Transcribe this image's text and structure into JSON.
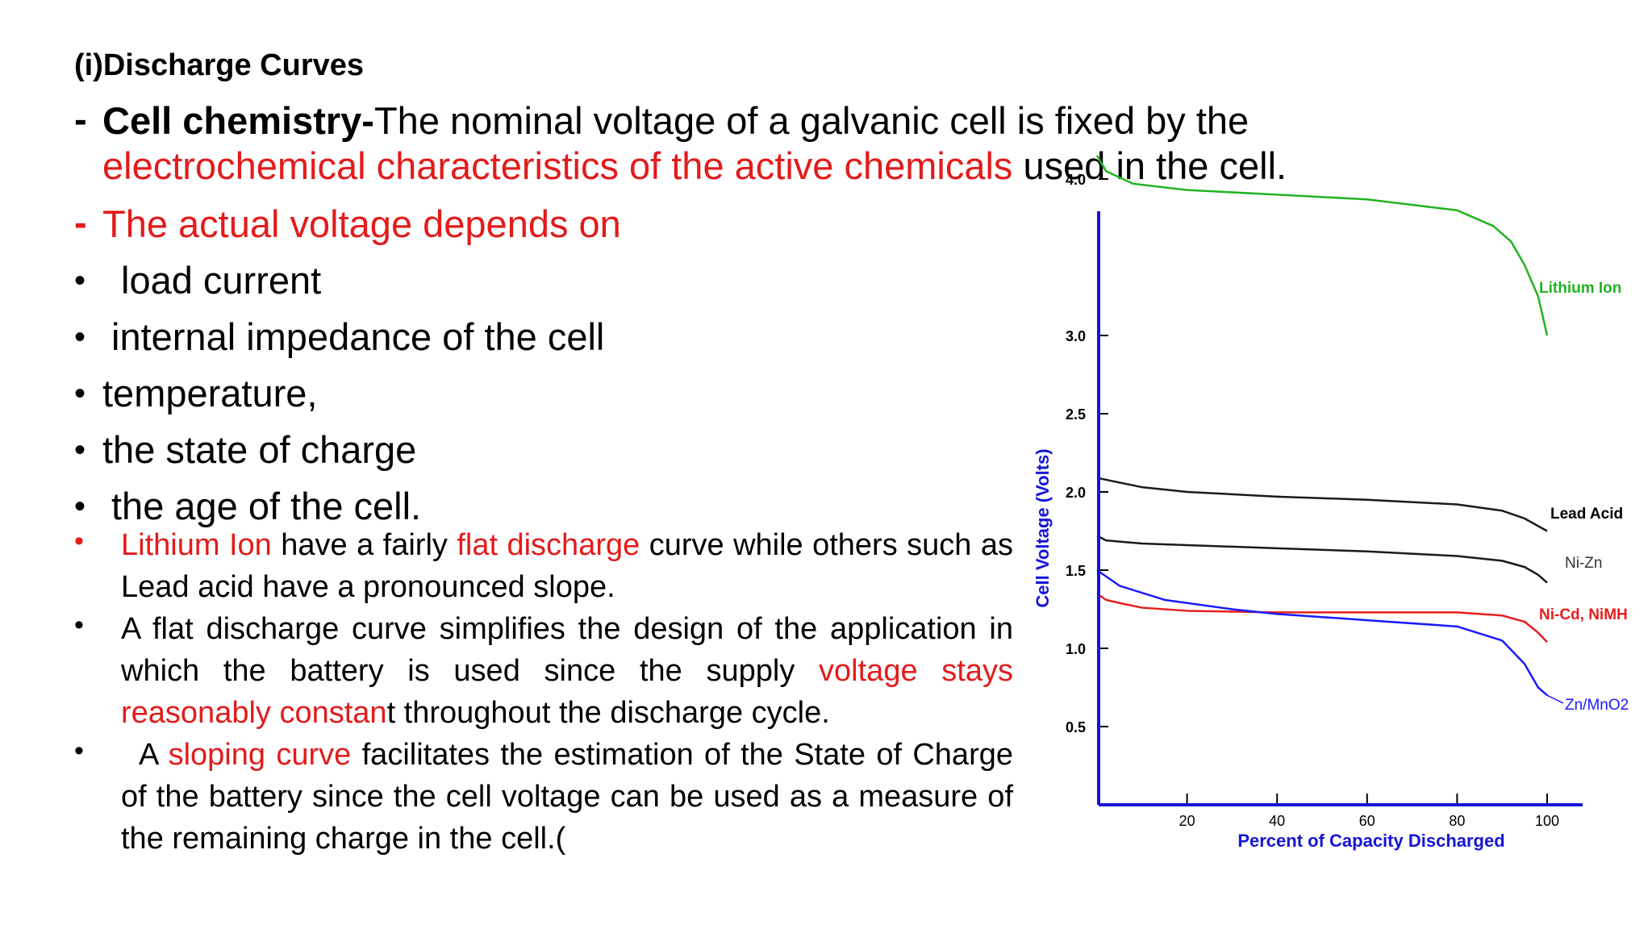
{
  "heading": "(i)Discharge Curves",
  "point1": {
    "bold": "Cell chemistry-",
    "text_a": "The nominal voltage of a galvanic cell is fixed by the",
    "text_red": "electrochemical characteristics of the active chemicals",
    "text_b": " used in the cell."
  },
  "point2": "The actual voltage depends on",
  "factors": [
    "load current",
    "internal impedance of the cell",
    "temperature,",
    "the state of charge",
    "the age of the cell."
  ],
  "notes": {
    "n1_red1": "Lithium Ion",
    "n1_a": " have a fairly ",
    "n1_red2": "flat discharge",
    "n1_b": " curve while others such as Lead acid have a pronounced slope.",
    "n2_a": "A flat discharge curve simplifies the design of the application in which the battery is used since the supply ",
    "n2_red": "voltage stays reasonably constan",
    "n2_b": "t throughout the discharge cycle.",
    "n3_a": "A ",
    "n3_red": "sloping curve",
    "n3_b": " facilitates the estimation of the State of Charge of the battery since the cell voltage can be used as a measure of the remaining charge in the cell.("
  },
  "colors": {
    "accent_red": "#e31b1b",
    "axis_blue": "#1515d6",
    "li_green": "#21b321",
    "nicd_red": "#e81d1d"
  },
  "chart_data": {
    "type": "line",
    "xlabel": "Percent of Capacity Discharged",
    "ylabel": "Cell Voltage (Volts)",
    "xlim": [
      0,
      105
    ],
    "ylim": [
      0,
      4.2
    ],
    "x_ticks": [
      20,
      40,
      60,
      80,
      100
    ],
    "y_ticks": [
      0.5,
      1.0,
      1.5,
      2.0,
      2.5,
      3.0,
      4.0
    ],
    "x_tick_labels": [
      "20",
      "40",
      "60",
      "80",
      "100"
    ],
    "y_tick_labels": [
      "0.5",
      "1.0",
      "1.5",
      "2.0",
      "2.5",
      "3.0",
      "4.0"
    ],
    "series": [
      {
        "name": "Lithium Ion",
        "color": "#21b321",
        "x": [
          0,
          2,
          8,
          20,
          40,
          60,
          80,
          88,
          92,
          95,
          98,
          100
        ],
        "y": [
          4.15,
          4.05,
          3.97,
          3.93,
          3.9,
          3.87,
          3.8,
          3.7,
          3.6,
          3.45,
          3.25,
          3.0
        ]
      },
      {
        "name": "Lead Acid",
        "color": "#1a1a1a",
        "x": [
          0,
          10,
          20,
          40,
          60,
          80,
          90,
          95,
          100
        ],
        "y": [
          2.09,
          2.03,
          2.0,
          1.97,
          1.95,
          1.92,
          1.88,
          1.83,
          1.75
        ]
      },
      {
        "name": "Ni-Zn",
        "color": "#1a1a1a",
        "x": [
          0,
          2,
          10,
          20,
          40,
          60,
          80,
          90,
          95,
          98,
          100
        ],
        "y": [
          1.72,
          1.69,
          1.67,
          1.66,
          1.64,
          1.62,
          1.59,
          1.56,
          1.52,
          1.47,
          1.42
        ]
      },
      {
        "name": "Ni-Cd,  NiMH",
        "color": "#e81d1d",
        "x": [
          0,
          2,
          5,
          10,
          20,
          40,
          60,
          80,
          90,
          95,
          98,
          100
        ],
        "y": [
          1.35,
          1.31,
          1.29,
          1.26,
          1.24,
          1.23,
          1.23,
          1.23,
          1.21,
          1.17,
          1.1,
          1.04
        ]
      },
      {
        "name": "Zn/MnO2",
        "color": "#1a1aff",
        "x": [
          0,
          5,
          15,
          30,
          40,
          60,
          80,
          90,
          95,
          98,
          100
        ],
        "y": [
          1.5,
          1.4,
          1.31,
          1.25,
          1.22,
          1.18,
          1.14,
          1.05,
          0.9,
          0.75,
          0.7
        ]
      }
    ]
  }
}
